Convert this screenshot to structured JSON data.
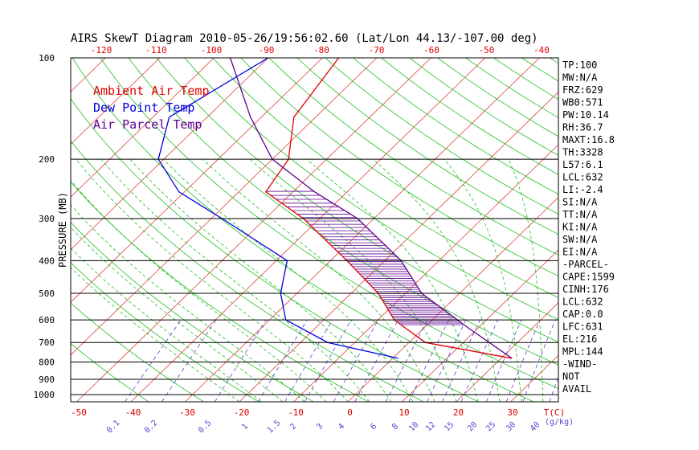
{
  "chart_data": {
    "type": "line",
    "title": "AIRS SkewT Diagram 2010-05-26/19:56:02.60 (Lat/Lon 44.13/-107.00 deg)",
    "ylabel": "PRESSURE (MB)",
    "y_scale": "log",
    "ylim": [
      1000,
      100
    ],
    "pressure_ticks": [
      100,
      200,
      300,
      400,
      500,
      600,
      700,
      800,
      900,
      1000
    ],
    "pressure_tick_labels": [
      "100",
      "200",
      "300",
      "400",
      "500",
      "600",
      "700",
      "800",
      "900",
      "1000"
    ],
    "bottom_temp_ticks": [
      -50,
      -40,
      -30,
      -20,
      -10,
      0,
      10,
      20,
      30
    ],
    "bottom_temp_labels": [
      "-50",
      "-40",
      "-30",
      "-20",
      "-10",
      "0",
      "10",
      "20",
      "30"
    ],
    "bottom_temp_unit": "T(C)",
    "top_temp_ticks": [
      -120,
      -110,
      -100,
      -90,
      -80,
      -70,
      -60,
      -50,
      -40
    ],
    "top_temp_labels": [
      "-120",
      "-110",
      "-100",
      "-90",
      "-80",
      "-70",
      "-60",
      "-50",
      "-40"
    ],
    "mixing_ratio_ticks": [
      0.1,
      0.2,
      0.5,
      1,
      1.5,
      2,
      3,
      4,
      6,
      8,
      10,
      12,
      15,
      20,
      25,
      30,
      40
    ],
    "mixing_ratio_labels": [
      "0.1",
      "0.2",
      "0.5",
      "1",
      "1.5",
      "2",
      "3",
      "4",
      "6",
      "8",
      "10",
      "12",
      "15",
      "20",
      "25",
      "30",
      "40"
    ],
    "mixing_ratio_unit": "(g/kg)",
    "grid": true,
    "legend_position": "top-left",
    "colors": {
      "ambient": "#e00000",
      "dewpoint": "#0000e0",
      "parcel": "#600090",
      "isotherm": "#e04040",
      "dry_adiabat": "#20c020",
      "moist_adiabat": "#20c020",
      "mixing_ratio": "#6040d0",
      "isobar": "#000000",
      "hatch": "#600090"
    },
    "series": [
      {
        "name": "Ambient Air Temp",
        "points": [
          {
            "p": 100,
            "t": -67
          },
          {
            "p": 150,
            "t": -64
          },
          {
            "p": 200,
            "t": -57
          },
          {
            "p": 250,
            "t": -55
          },
          {
            "p": 300,
            "t": -43
          },
          {
            "p": 400,
            "t": -27
          },
          {
            "p": 500,
            "t": -15
          },
          {
            "p": 600,
            "t": -7
          },
          {
            "p": 700,
            "t": 3
          },
          {
            "p": 780,
            "t": 22
          }
        ]
      },
      {
        "name": "Dew Point Temp",
        "points": [
          {
            "p": 100,
            "t": -80
          },
          {
            "p": 150,
            "t": -87
          },
          {
            "p": 200,
            "t": -81
          },
          {
            "p": 250,
            "t": -71
          },
          {
            "p": 300,
            "t": -58
          },
          {
            "p": 400,
            "t": -38
          },
          {
            "p": 500,
            "t": -33
          },
          {
            "p": 600,
            "t": -27
          },
          {
            "p": 700,
            "t": -15
          },
          {
            "p": 780,
            "t": 1
          }
        ]
      },
      {
        "name": "Air Parcel Temp",
        "points": [
          {
            "p": 100,
            "t": -87
          },
          {
            "p": 150,
            "t": -72
          },
          {
            "p": 200,
            "t": -60
          },
          {
            "p": 250,
            "t": -46
          },
          {
            "p": 300,
            "t": -33
          },
          {
            "p": 400,
            "t": -17
          },
          {
            "p": 500,
            "t": -7
          },
          {
            "p": 632,
            "t": 8
          },
          {
            "p": 780,
            "t": 22
          }
        ]
      }
    ],
    "stats": [
      "TP:100",
      "MW:N/A",
      "FRZ:629",
      "WB0:571",
      "PW:10.14",
      "RH:36.7",
      "MAXT:16.8",
      "TH:3328",
      "L57:6.1",
      "LCL:632",
      "LI:-2.4",
      "SI:N/A",
      "TT:N/A",
      "KI:N/A",
      "SW:N/A",
      "EI:N/A",
      "-PARCEL-",
      "CAPE:1599",
      "CINH:176",
      "LCL:632",
      "CAP:0.0",
      "LFC:631",
      "EL:216",
      "MPL:144",
      "-WIND-",
      "NOT",
      "AVAIL"
    ]
  }
}
